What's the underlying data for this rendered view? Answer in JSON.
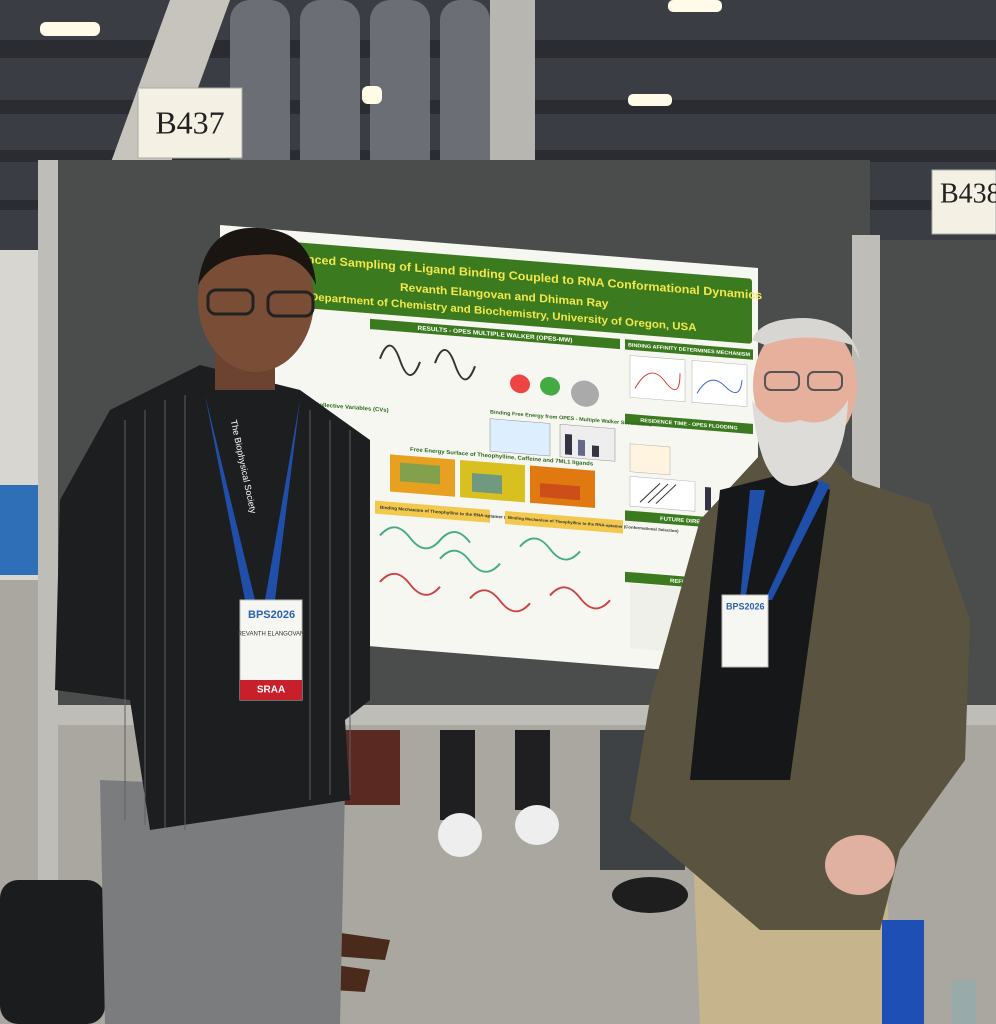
{
  "signs": [
    "B437",
    "B438"
  ],
  "poster": {
    "title": "anced Sampling of Ligand Binding Coupled to RNA Conformational Dynamics",
    "authors": "Revanth Elangovan and Dhiman Ray",
    "affiliation": "Department of Chemistry and Biochemistry, University of Oregon, USA",
    "sections": [
      "RESULTS - OPES MULTIPLE WALKER (OPES-MW)",
      "BINDING AFFINITY DETERMINES MECHANISM",
      "RESIDENCE TIME - OPES FLOODING",
      "FUTURE DIRECTI",
      "REFEREN"
    ],
    "captions": [
      "Collective Variables (CVs)",
      "Binding Free Energy from OPES - Multiple Walker Simulations",
      "Free Energy Surface of Theophylline, Caffeine and 7ML1 ligands",
      "Binding Mechanism of Theophylline to the RNA-aptamer (Induced Fit)",
      "Binding Mechanism of Theophylline to the RNA-aptamer (Conformational Selection)"
    ]
  },
  "lanyard": "The Biophysical Society",
  "badges": [
    {
      "event": "BPS2026",
      "name": "REVANTH ELANGOVAN",
      "ribbon": "SRAA"
    },
    {
      "event": "BPS2026"
    }
  ]
}
